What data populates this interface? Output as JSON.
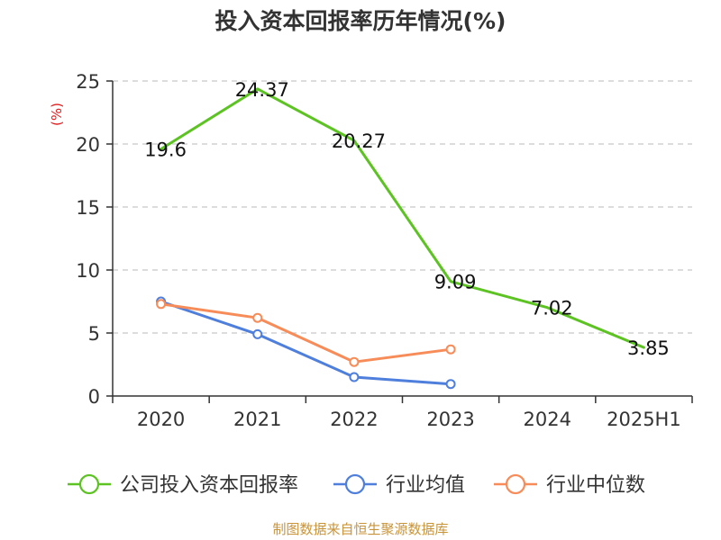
{
  "chart_data": {
    "type": "line",
    "title": "投入资本回报率历年情况(%)",
    "ylabel": "(%)",
    "xlabel": "",
    "categories": [
      "2020",
      "2021",
      "2022",
      "2023",
      "2024",
      "2025H1"
    ],
    "ylim": [
      0,
      25
    ],
    "yticks": [
      0,
      5,
      10,
      15,
      20,
      25
    ],
    "grid": true,
    "legend_position": "bottom",
    "series": [
      {
        "name": "公司投入资本回报率",
        "color": "#5cc322",
        "values": [
          19.6,
          24.37,
          20.27,
          9.09,
          7.02,
          3.85
        ],
        "labels": [
          "19.6",
          "24.37",
          "20.27",
          "9.09",
          "7.02",
          "3.85"
        ],
        "show_markers": false
      },
      {
        "name": "行业均值",
        "color": "#4f7fdc",
        "values": [
          7.5,
          4.9,
          1.5,
          0.95,
          null,
          null
        ],
        "show_markers": true
      },
      {
        "name": "行业中位数",
        "color": "#f88c58",
        "values": [
          7.3,
          6.2,
          2.7,
          3.7,
          null,
          null
        ],
        "show_markers": true
      }
    ],
    "ylabel_color": "#e31a1c"
  },
  "source": {
    "text": "制图数据来自恒生聚源数据库",
    "color": "#c8943a"
  }
}
